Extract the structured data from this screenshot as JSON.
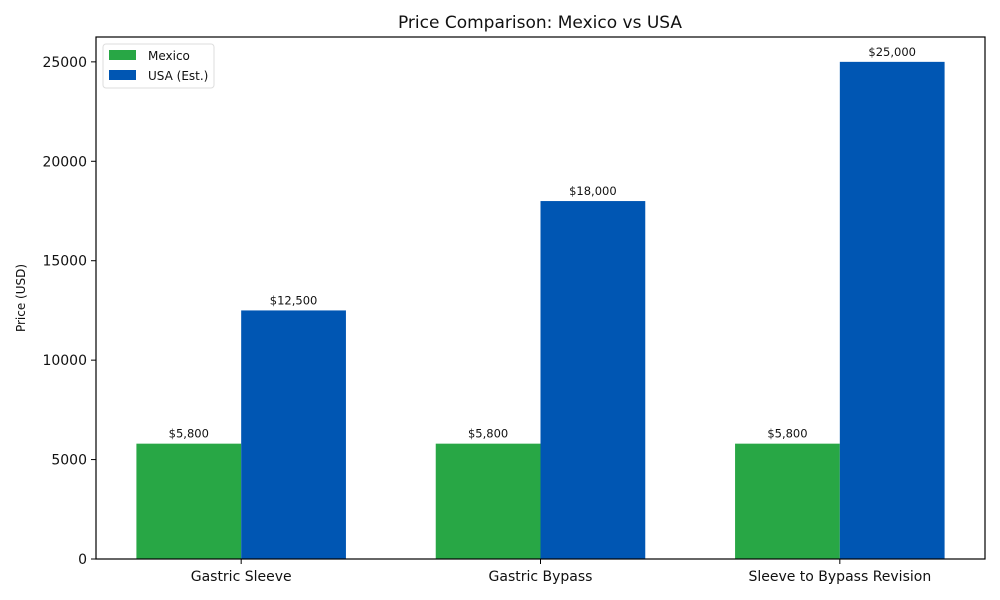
{
  "chart_data": {
    "type": "bar",
    "title": "Price Comparison: Mexico vs USA",
    "xlabel": "",
    "ylabel": "Price (USD)",
    "categories": [
      "Gastric Sleeve",
      "Gastric Bypass",
      "Sleeve to Bypass Revision"
    ],
    "series": [
      {
        "name": "Mexico",
        "values": [
          5800,
          5800,
          5800
        ],
        "labels": [
          "$5,800",
          "$5,800",
          "$5,800"
        ],
        "color": "#28a745"
      },
      {
        "name": "USA (Est.)",
        "values": [
          12500,
          18000,
          25000
        ],
        "labels": [
          "$12,500",
          "$18,000",
          "$25,000"
        ],
        "color": "#0056b3"
      }
    ],
    "ylim": [
      0,
      26250
    ],
    "yticks": [
      0,
      5000,
      10000,
      15000,
      20000,
      25000
    ],
    "grid": false,
    "legend": "top-left"
  }
}
